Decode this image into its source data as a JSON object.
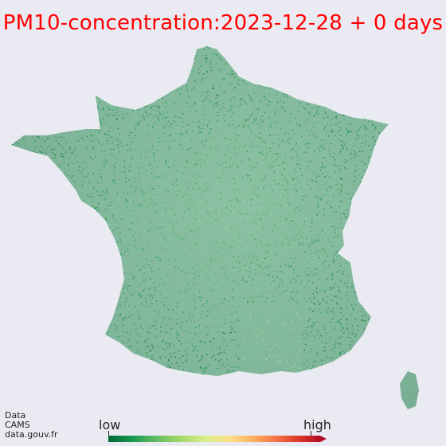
{
  "title": "PM10-concentration:2023-12-28 + 0 days",
  "pollutant": "PM10",
  "date": "2023-12-28",
  "forecast_offset_days": 0,
  "credit": [
    "Data",
    "CAMS",
    "data.gouv.fr"
  ],
  "colorbar": {
    "low_label": "low",
    "high_label": "high",
    "colormap": [
      "#006837",
      "#1a9850",
      "#66bd63",
      "#a6d96a",
      "#d9ef8b",
      "#fee08b",
      "#fdae61",
      "#f46d43",
      "#d73027",
      "#a50026"
    ]
  },
  "colors": {
    "title": "#ff0000",
    "background": "#eaeaf2",
    "dominant_dot_colors": [
      "#1e8a4b",
      "#2e9a59",
      "#4aaf6a",
      "#76c27f",
      "#a7d8a0"
    ]
  }
}
